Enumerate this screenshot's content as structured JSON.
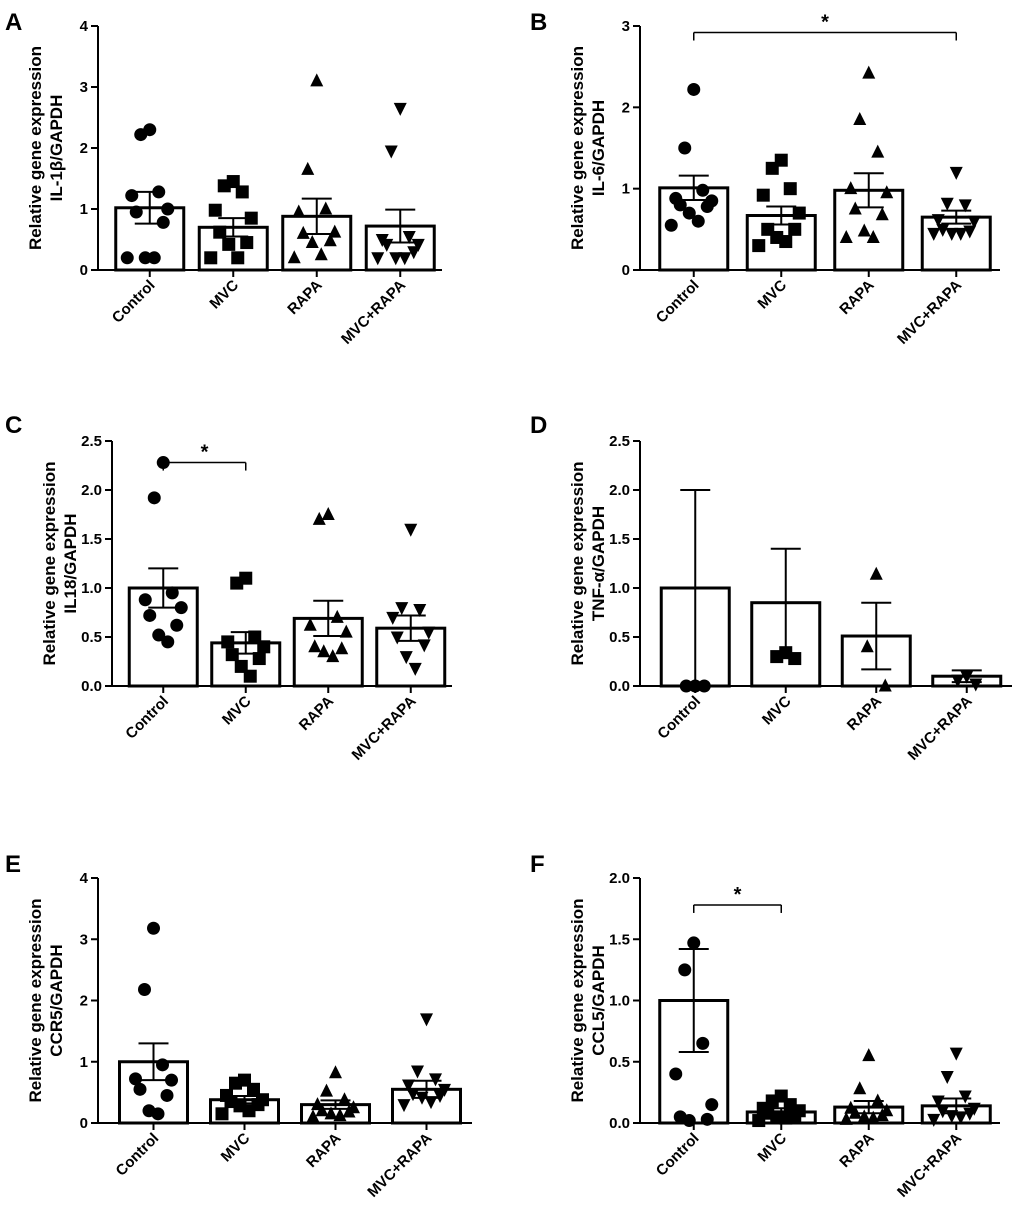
{
  "chart_data": [
    {
      "panel": "A",
      "type": "bar",
      "ylabel_lines": [
        "Relative gene expression",
        "IL-1β/GAPDH"
      ],
      "ylim": [
        0,
        4
      ],
      "ticks": [
        0,
        1,
        2,
        3,
        4
      ],
      "tick_labels": [
        "0",
        "1",
        "2",
        "3",
        "4"
      ],
      "categories": [
        "Control",
        "MVC",
        "RAPA",
        "MVC+RAPA"
      ],
      "markers": [
        "circle",
        "square",
        "triangle-up",
        "triangle-down"
      ],
      "means": [
        1.02,
        0.7,
        0.88,
        0.72
      ],
      "sem": [
        0.26,
        0.15,
        0.29,
        0.27
      ],
      "points": [
        [
          2.3,
          2.22,
          1.28,
          1.22,
          1.0,
          0.95,
          0.78,
          0.2,
          0.2,
          0.2
        ],
        [
          1.45,
          1.38,
          1.28,
          0.98,
          0.85,
          0.62,
          0.45,
          0.42,
          0.2,
          0.2
        ],
        [
          3.1,
          1.65,
          1.0,
          0.95,
          0.62,
          0.6,
          0.48,
          0.45,
          0.25,
          0.2
        ],
        [
          2.65,
          1.95,
          0.55,
          0.5,
          0.42,
          0.42,
          0.3,
          0.2,
          0.2,
          0.2
        ]
      ],
      "significance": []
    },
    {
      "panel": "B",
      "type": "bar",
      "ylabel_lines": [
        "Relative gene expression",
        "IL-6/GAPDH"
      ],
      "ylim": [
        0,
        3
      ],
      "ticks": [
        0,
        1,
        2,
        3
      ],
      "tick_labels": [
        "0",
        "1",
        "2",
        "3"
      ],
      "categories": [
        "Control",
        "MVC",
        "RAPA",
        "MVC+RAPA"
      ],
      "markers": [
        "circle",
        "square",
        "triangle-up",
        "triangle-down"
      ],
      "means": [
        1.01,
        0.67,
        0.98,
        0.65
      ],
      "sem": [
        0.15,
        0.11,
        0.21,
        0.08
      ],
      "points": [
        [
          2.22,
          1.5,
          0.98,
          0.88,
          0.85,
          0.8,
          0.78,
          0.7,
          0.6,
          0.55
        ],
        [
          1.35,
          1.25,
          1.0,
          0.92,
          0.7,
          0.5,
          0.5,
          0.4,
          0.35,
          0.3
        ],
        [
          2.42,
          1.85,
          1.45,
          1.0,
          0.95,
          0.75,
          0.68,
          0.48,
          0.4,
          0.4
        ],
        [
          1.2,
          0.82,
          0.8,
          0.62,
          0.6,
          0.5,
          0.48,
          0.45,
          0.45,
          0.45
        ]
      ],
      "significance": [
        {
          "from": 0,
          "to": 3,
          "label": "*",
          "y": 2.92
        }
      ]
    },
    {
      "panel": "C",
      "type": "bar",
      "ylabel_lines": [
        "Relative gene expression",
        "IL18/GAPDH"
      ],
      "ylim": [
        0,
        2.5
      ],
      "ticks": [
        0,
        0.5,
        1,
        1.5,
        2,
        2.5
      ],
      "tick_labels": [
        "0.0",
        "0.5",
        "1.0",
        "1.5",
        "2.0",
        "2.5"
      ],
      "categories": [
        "Control",
        "MVC",
        "RAPA",
        "MVC+RAPA"
      ],
      "markers": [
        "circle",
        "square",
        "triangle-up",
        "triangle-down"
      ],
      "means": [
        1.0,
        0.44,
        0.69,
        0.59
      ],
      "sem": [
        0.2,
        0.11,
        0.18,
        0.13
      ],
      "points": [
        [
          2.28,
          1.92,
          0.95,
          0.88,
          0.8,
          0.72,
          0.62,
          0.52,
          0.45
        ],
        [
          1.1,
          1.05,
          0.5,
          0.45,
          0.4,
          0.32,
          0.28,
          0.2,
          0.1
        ],
        [
          1.75,
          1.7,
          0.7,
          0.62,
          0.55,
          0.4,
          0.38,
          0.35,
          0.3
        ],
        [
          1.6,
          0.8,
          0.78,
          0.7,
          0.55,
          0.5,
          0.42,
          0.3,
          0.18
        ]
      ],
      "significance": [
        {
          "from": 0,
          "to": 1,
          "label": "*",
          "y": 2.28
        }
      ]
    },
    {
      "panel": "D",
      "type": "bar",
      "ylabel_lines": [
        "Relative gene expression",
        "TNF-α/GAPDH"
      ],
      "ylim": [
        0,
        2.5
      ],
      "ticks": [
        0,
        0.5,
        1,
        1.5,
        2,
        2.5
      ],
      "tick_labels": [
        "0.0",
        "0.5",
        "1.0",
        "1.5",
        "2.0",
        "2.5"
      ],
      "categories": [
        "Control",
        "MVC",
        "RAPA",
        "MVC+RAPA"
      ],
      "markers": [
        "circle",
        "square",
        "triangle-up",
        "triangle-down"
      ],
      "means": [
        1.0,
        0.85,
        0.51,
        0.1
      ],
      "sem": [
        1.0,
        0.55,
        0.34,
        0.06
      ],
      "points": [
        [
          0.0,
          0.0,
          0.0
        ],
        [
          0.34,
          0.3,
          0.28
        ],
        [
          1.14,
          0.4,
          0.0
        ],
        [
          0.1,
          0.06,
          0.02
        ]
      ],
      "significance": []
    },
    {
      "panel": "E",
      "type": "bar",
      "ylabel_lines": [
        "Relative gene expression",
        "CCR5/GAPDH"
      ],
      "ylim": [
        0,
        4
      ],
      "ticks": [
        0,
        1,
        2,
        3,
        4
      ],
      "tick_labels": [
        "0",
        "1",
        "2",
        "3",
        "4"
      ],
      "categories": [
        "Control",
        "MVC",
        "RAPA",
        "MVC+RAPA"
      ],
      "markers": [
        "circle",
        "square",
        "triangle-up",
        "triangle-down"
      ],
      "means": [
        1.0,
        0.38,
        0.3,
        0.55
      ],
      "sem": [
        0.3,
        0.06,
        0.07,
        0.14
      ],
      "points": [
        [
          3.18,
          2.18,
          0.95,
          0.72,
          0.7,
          0.55,
          0.45,
          0.2,
          0.15
        ],
        [
          0.7,
          0.65,
          0.55,
          0.45,
          0.38,
          0.35,
          0.3,
          0.28,
          0.2,
          0.15
        ],
        [
          0.82,
          0.52,
          0.38,
          0.3,
          0.25,
          0.2,
          0.18,
          0.15,
          0.12,
          0.1
        ],
        [
          1.7,
          0.85,
          0.72,
          0.62,
          0.55,
          0.48,
          0.45,
          0.42,
          0.35,
          0.3
        ]
      ],
      "significance": []
    },
    {
      "panel": "F",
      "type": "bar",
      "ylabel_lines": [
        "Relative gene expression",
        "CCL5/GAPDH"
      ],
      "ylim": [
        0,
        2
      ],
      "ticks": [
        0,
        0.5,
        1,
        1.5,
        2
      ],
      "tick_labels": [
        "0.0",
        "0.5",
        "1.0",
        "1.5",
        "2.0"
      ],
      "categories": [
        "Control",
        "MVC",
        "RAPA",
        "MVC+RAPA"
      ],
      "markers": [
        "circle",
        "square",
        "triangle-up",
        "triangle-down"
      ],
      "means": [
        1.0,
        0.09,
        0.13,
        0.14
      ],
      "sem": [
        0.42,
        0.03,
        0.05,
        0.06
      ],
      "points": [
        [
          1.47,
          1.25,
          0.65,
          0.4,
          0.15,
          0.05,
          0.03,
          0.02
        ],
        [
          0.22,
          0.18,
          0.15,
          0.12,
          0.1,
          0.08,
          0.06,
          0.05,
          0.04,
          0.02
        ],
        [
          0.55,
          0.28,
          0.18,
          0.12,
          0.1,
          0.08,
          0.06,
          0.05,
          0.04,
          0.03
        ],
        [
          0.57,
          0.38,
          0.22,
          0.18,
          0.12,
          0.1,
          0.08,
          0.06,
          0.05,
          0.03
        ]
      ],
      "significance": [
        {
          "from": 0,
          "to": 1,
          "label": "*",
          "y": 1.78
        }
      ]
    }
  ]
}
